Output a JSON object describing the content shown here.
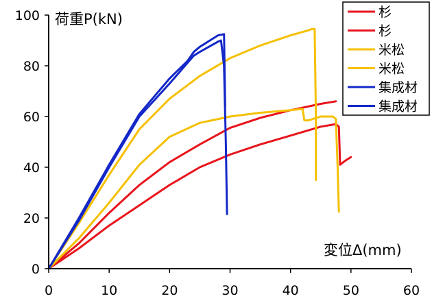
{
  "chart_data": {
    "type": "line",
    "title": "",
    "ylabel": "荷重P(kN)",
    "xlabel": "変位Δ(mm)",
    "xlim": [
      0,
      60
    ],
    "ylim": [
      0,
      100
    ],
    "xticks": [
      0,
      10,
      20,
      30,
      40,
      50,
      60
    ],
    "yticks": [
      0,
      20,
      40,
      60,
      80,
      100
    ],
    "grid": false,
    "legend_position": "top-right",
    "series": [
      {
        "name": "杉",
        "color": "#e8141c",
        "x": [
          0,
          5,
          10,
          15,
          20,
          25,
          30,
          35,
          40,
          45,
          47.5
        ],
        "y": [
          0,
          10,
          22,
          33,
          42,
          49,
          55.5,
          59.5,
          62.5,
          65,
          66
        ]
      },
      {
        "name": "杉",
        "color": "#e8141c",
        "x": [
          0,
          5,
          10,
          15,
          20,
          25,
          30,
          35,
          40,
          45,
          47.5,
          48,
          48.2,
          49,
          50
        ],
        "y": [
          0,
          8,
          17,
          25,
          33,
          40,
          45,
          49,
          52.5,
          56,
          57,
          56,
          41,
          42.5,
          44
        ]
      },
      {
        "name": "米松",
        "color": "#f5c000",
        "x": [
          0,
          5,
          10,
          15,
          20,
          25,
          30,
          35,
          40,
          43,
          43.5,
          44,
          44.2,
          44.2
        ],
        "y": [
          0,
          18,
          37,
          55,
          67,
          76,
          83,
          88,
          92,
          94,
          94.5,
          94.5,
          60,
          35
        ]
      },
      {
        "name": "米松",
        "color": "#f5c000",
        "x": [
          0,
          5,
          10,
          15,
          20,
          25,
          30,
          35,
          40,
          42,
          42.3,
          43,
          45,
          47,
          47.5,
          47.8,
          48
        ],
        "y": [
          0,
          12,
          26,
          41,
          52,
          57.5,
          60,
          61.5,
          62.5,
          63,
          58.5,
          58.5,
          60,
          60,
          59,
          40,
          22.5
        ]
      },
      {
        "name": "集成材",
        "color": "#1428c8",
        "x": [
          0,
          5,
          10,
          15,
          20,
          23,
          24,
          25,
          28,
          29,
          29.2
        ],
        "y": [
          0,
          20,
          41,
          61,
          75,
          82,
          85.5,
          87.5,
          92,
          92.5,
          64
        ]
      },
      {
        "name": "集成材",
        "color": "#1428c8",
        "x": [
          0,
          5,
          10,
          15,
          20,
          24,
          25,
          28,
          28.5,
          29,
          29.3,
          29.5
        ],
        "y": [
          0,
          19,
          40,
          60,
          73,
          84,
          85.5,
          89.5,
          90,
          80,
          50,
          21.5
        ]
      }
    ]
  }
}
